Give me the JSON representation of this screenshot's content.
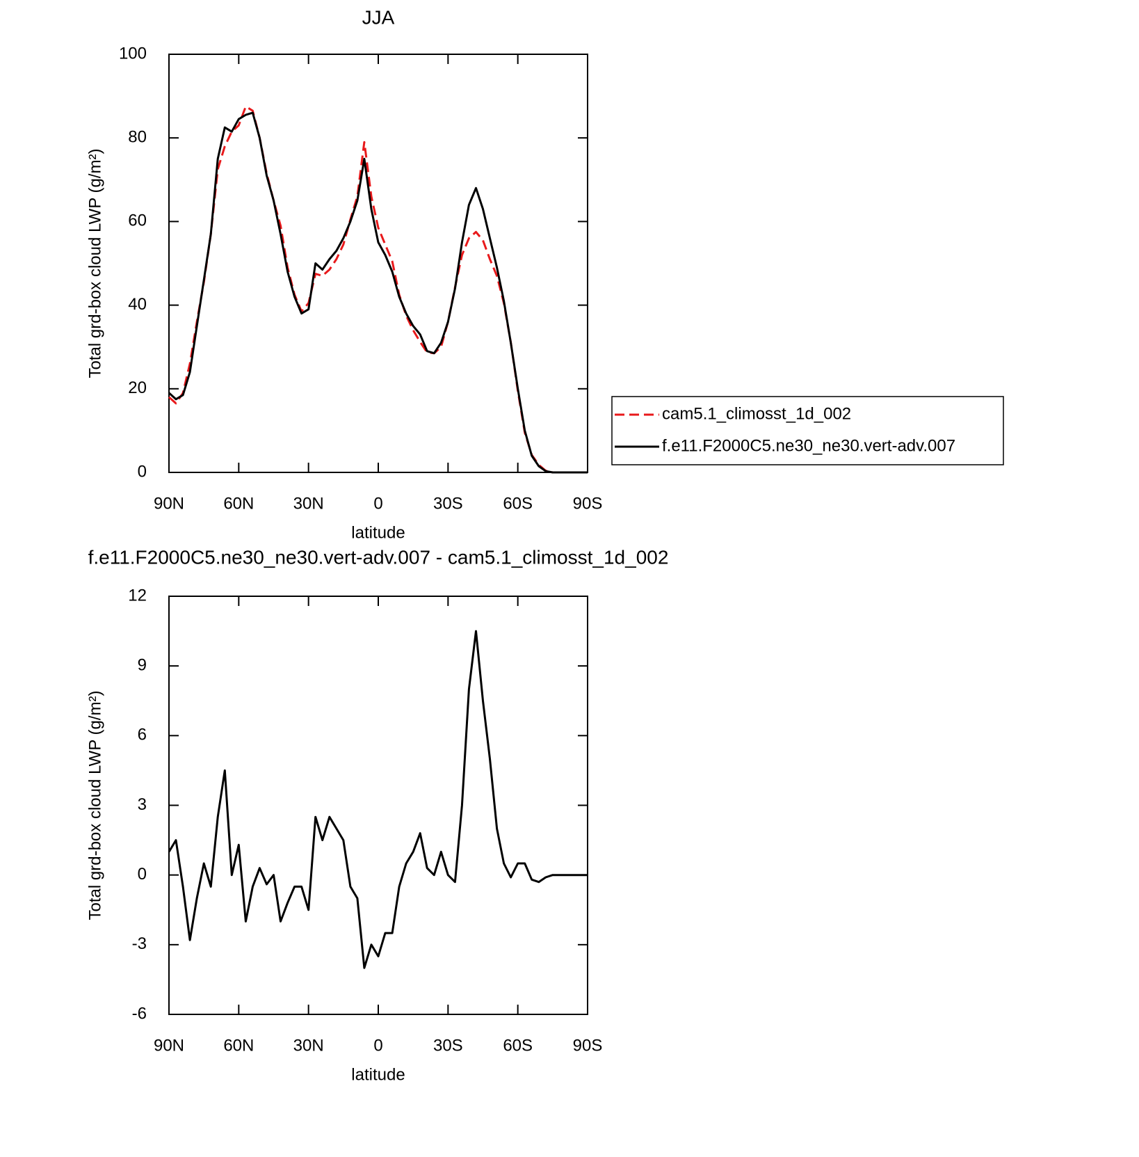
{
  "chart_data": [
    {
      "type": "line",
      "title": "JJA",
      "xlabel": "latitude",
      "ylabel": "Total grd-box cloud LWP (g/m²)",
      "x": [
        90,
        87,
        84,
        81,
        78,
        75,
        72,
        69,
        66,
        63,
        60,
        57,
        54,
        51,
        48,
        45,
        42,
        39,
        36,
        33,
        30,
        27,
        24,
        21,
        18,
        15,
        12,
        9,
        6,
        3,
        0,
        -3,
        -6,
        -9,
        -12,
        -15,
        -18,
        -21,
        -24,
        -27,
        -30,
        -33,
        -36,
        -39,
        -42,
        -45,
        -48,
        -51,
        -54,
        -57,
        -60,
        -63,
        -66,
        -69,
        -72,
        -75,
        -78,
        -81,
        -84,
        -87,
        -90
      ],
      "series": [
        {
          "name": "cam5.1_climosst_1d_002",
          "color": "#e8191b",
          "linestyle": "dashed",
          "values": [
            18,
            16.5,
            19,
            26,
            36,
            45.5,
            57,
            72.5,
            78,
            81.5,
            83,
            87.5,
            86.5,
            80,
            71.5,
            65,
            59,
            49,
            42.5,
            38.5,
            40.5,
            47.5,
            47,
            48.5,
            51,
            54.5,
            60.5,
            66,
            79,
            66,
            58.5,
            54.5,
            50.5,
            42.5,
            37.5,
            34,
            31.2,
            28.7,
            28.5,
            30,
            36,
            44.3,
            52,
            56,
            57.5,
            55.5,
            51,
            47,
            40.5,
            31.1,
            19.5,
            9.5,
            4.2,
            1.8,
            0.4,
            0,
            0,
            0,
            0,
            0,
            0
          ]
        },
        {
          "name": "f.e11.F2000C5.ne30_ne30.vert-adv.007",
          "color": "#000000",
          "linestyle": "solid",
          "values": [
            19,
            17.5,
            18.5,
            24,
            35,
            46,
            57,
            75,
            82.5,
            81.5,
            84.5,
            85.5,
            86,
            80,
            71,
            65,
            57,
            48,
            42,
            38,
            39,
            50,
            48.5,
            51,
            53,
            56,
            60,
            65,
            75,
            63,
            55,
            52,
            48,
            42,
            38,
            35,
            33,
            29,
            28.5,
            31,
            36,
            44,
            55,
            64,
            68,
            63,
            56,
            49,
            41,
            31,
            20,
            10,
            4,
            1.5,
            0.3,
            0,
            0,
            0,
            0,
            0,
            0
          ]
        }
      ],
      "xlim": [
        90,
        -90
      ],
      "xticks": [
        {
          "value": 90,
          "label": "90N"
        },
        {
          "value": 60,
          "label": "60N"
        },
        {
          "value": 30,
          "label": "30N"
        },
        0,
        {
          "value": -30,
          "label": "30S"
        },
        {
          "value": -60,
          "label": "60S"
        },
        {
          "value": -90,
          "label": "90S"
        }
      ],
      "ylim": [
        0,
        100
      ],
      "yticks": [
        0,
        20,
        40,
        60,
        80,
        100
      ],
      "legend": "right"
    },
    {
      "type": "line",
      "title": "f.e11.F2000C5.ne30_ne30.vert-adv.007 - cam5.1_climosst_1d_002",
      "xlabel": "latitude",
      "ylabel": "Total grd-box cloud LWP (g/m²)",
      "x": [
        90,
        87,
        84,
        81,
        78,
        75,
        72,
        69,
        66,
        63,
        60,
        57,
        54,
        51,
        48,
        45,
        42,
        39,
        36,
        33,
        30,
        27,
        24,
        21,
        18,
        15,
        12,
        9,
        6,
        3,
        0,
        -3,
        -6,
        -9,
        -12,
        -15,
        -18,
        -21,
        -24,
        -27,
        -30,
        -33,
        -36,
        -39,
        -42,
        -45,
        -48,
        -51,
        -54,
        -57,
        -60,
        -63,
        -66,
        -69,
        -72,
        -75,
        -78,
        -81,
        -84,
        -87,
        -90
      ],
      "series": [
        {
          "color": "#000000",
          "linestyle": "solid",
          "values": [
            1,
            1.5,
            -0.5,
            -2.8,
            -1,
            0.5,
            -0.5,
            2.5,
            4.5,
            0,
            1.3,
            -2,
            -0.5,
            0.3,
            -0.4,
            0,
            -2,
            -1.2,
            -0.5,
            -0.5,
            -1.5,
            2.5,
            1.5,
            2.5,
            2,
            1.5,
            -0.5,
            -1,
            -4,
            -3,
            -3.5,
            -2.5,
            -2.5,
            -0.5,
            0.5,
            1,
            1.8,
            0.3,
            0,
            1,
            0,
            -0.3,
            3,
            8,
            10.5,
            7.5,
            5,
            2,
            0.5,
            -0.1,
            0.5,
            0.5,
            -0.2,
            -0.3,
            -0.1,
            0,
            0,
            0,
            0,
            0,
            0
          ]
        }
      ],
      "xlim": [
        90,
        -90
      ],
      "xticks": [
        {
          "value": 90,
          "label": "90N"
        },
        {
          "value": 60,
          "label": "60N"
        },
        {
          "value": 30,
          "label": "30N"
        },
        0,
        {
          "value": -30,
          "label": "30S"
        },
        {
          "value": -60,
          "label": "60S"
        },
        {
          "value": -90,
          "label": "90S"
        }
      ],
      "ylim": [
        -6,
        12
      ],
      "yticks": [
        -6,
        -3,
        0,
        3,
        6,
        9,
        12
      ]
    }
  ]
}
